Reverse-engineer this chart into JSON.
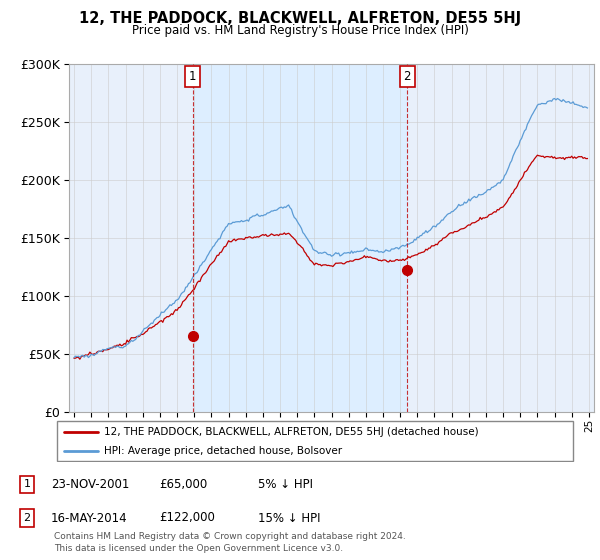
{
  "title": "12, THE PADDOCK, BLACKWELL, ALFRETON, DE55 5HJ",
  "subtitle": "Price paid vs. HM Land Registry's House Price Index (HPI)",
  "legend_line1": "12, THE PADDOCK, BLACKWELL, ALFRETON, DE55 5HJ (detached house)",
  "legend_line2": "HPI: Average price, detached house, Bolsover",
  "transaction1_date": "23-NOV-2001",
  "transaction1_price": 65000,
  "transaction1_note": "5% ↓ HPI",
  "transaction2_date": "16-MAY-2014",
  "transaction2_price": 122000,
  "transaction2_note": "15% ↓ HPI",
  "footer": "Contains HM Land Registry data © Crown copyright and database right 2024.\nThis data is licensed under the Open Government Licence v3.0.",
  "hpi_color": "#5b9bd5",
  "price_color": "#c00000",
  "marker_color": "#c00000",
  "vline_color": "#c00000",
  "shade_color": "#ddeeff",
  "background_color": "#e8f0fb",
  "ylim": [
    0,
    300000
  ],
  "yticks": [
    0,
    50000,
    100000,
    150000,
    200000,
    250000,
    300000
  ]
}
